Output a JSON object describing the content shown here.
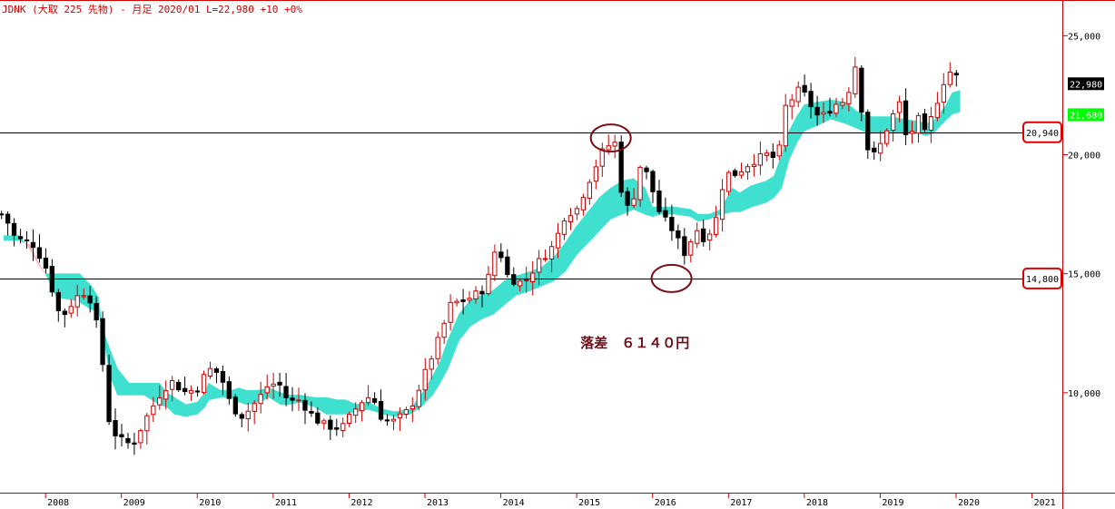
{
  "header": {
    "title": "JDNK (大取 225 先物) - 月足 2020/01 L=22,980 +10  +0%"
  },
  "chart_data": {
    "type": "candlestick",
    "timeframe": "monthly",
    "ylim": [
      5800,
      26500
    ],
    "yticks": [
      10000,
      15000,
      20000,
      25000
    ],
    "ytick_labels": [
      "10,000",
      "15,000",
      "20,000",
      "25,000"
    ],
    "xrange_years": [
      2007.4,
      2021.4
    ],
    "xticks": [
      2008,
      2009,
      2010,
      2011,
      2012,
      2013,
      2014,
      2015,
      2016,
      2017,
      2018,
      2019,
      2020,
      2021
    ],
    "xtick_labels": [
      "2008",
      "2009",
      "2010",
      "2011",
      "2012",
      "2013",
      "2014",
      "2015",
      "2016",
      "2017",
      "2018",
      "2019",
      "2020",
      "2021"
    ],
    "close_anchors": [
      [
        2007.45,
        17500
      ],
      [
        2007.6,
        16500
      ],
      [
        2007.85,
        16200
      ],
      [
        2008.0,
        15300
      ],
      [
        2008.2,
        13100
      ],
      [
        2008.4,
        14000
      ],
      [
        2008.55,
        14300
      ],
      [
        2008.65,
        13300
      ],
      [
        2008.75,
        11300
      ],
      [
        2008.85,
        8500
      ],
      [
        2009.0,
        8000
      ],
      [
        2009.15,
        7800
      ],
      [
        2009.3,
        8800
      ],
      [
        2009.5,
        9900
      ],
      [
        2009.65,
        10500
      ],
      [
        2009.85,
        10000
      ],
      [
        2010.0,
        10200
      ],
      [
        2010.15,
        11000
      ],
      [
        2010.3,
        10800
      ],
      [
        2010.45,
        9400
      ],
      [
        2010.6,
        9000
      ],
      [
        2010.8,
        9700
      ],
      [
        2010.95,
        10400
      ],
      [
        2011.1,
        10300
      ],
      [
        2011.2,
        9600
      ],
      [
        2011.35,
        9700
      ],
      [
        2011.55,
        8900
      ],
      [
        2011.7,
        8600
      ],
      [
        2011.9,
        8500
      ],
      [
        2012.15,
        9600
      ],
      [
        2012.3,
        9900
      ],
      [
        2012.45,
        8800
      ],
      [
        2012.6,
        8800
      ],
      [
        2012.8,
        9300
      ],
      [
        2012.95,
        10400
      ],
      [
        2013.2,
        12400
      ],
      [
        2013.35,
        13800
      ],
      [
        2013.45,
        13800
      ],
      [
        2013.6,
        14000
      ],
      [
        2013.8,
        14400
      ],
      [
        2013.95,
        16300
      ],
      [
        2014.1,
        14800
      ],
      [
        2014.3,
        14600
      ],
      [
        2014.5,
        15500
      ],
      [
        2014.7,
        16200
      ],
      [
        2014.85,
        17500
      ],
      [
        2015.0,
        17700
      ],
      [
        2015.2,
        19200
      ],
      [
        2015.35,
        20200
      ],
      [
        2015.5,
        20600
      ],
      [
        2015.55,
        18900
      ],
      [
        2015.7,
        17500
      ],
      [
        2015.85,
        19700
      ],
      [
        2015.95,
        19000
      ],
      [
        2016.1,
        17500
      ],
      [
        2016.25,
        16900
      ],
      [
        2016.45,
        15700
      ],
      [
        2016.55,
        17000
      ],
      [
        2016.7,
        16400
      ],
      [
        2016.85,
        17400
      ],
      [
        2016.95,
        19200
      ],
      [
        2017.1,
        19200
      ],
      [
        2017.3,
        19700
      ],
      [
        2017.5,
        20000
      ],
      [
        2017.65,
        19800
      ],
      [
        2017.75,
        22000
      ],
      [
        2017.95,
        22800
      ],
      [
        2018.1,
        22000
      ],
      [
        2018.2,
        21500
      ],
      [
        2018.4,
        22100
      ],
      [
        2018.55,
        22300
      ],
      [
        2018.7,
        24100
      ],
      [
        2018.75,
        22000
      ],
      [
        2018.85,
        20000
      ],
      [
        2018.95,
        20000
      ],
      [
        2019.1,
        21200
      ],
      [
        2019.25,
        22200
      ],
      [
        2019.35,
        20600
      ],
      [
        2019.5,
        21500
      ],
      [
        2019.6,
        20800
      ],
      [
        2019.7,
        21800
      ],
      [
        2019.85,
        23200
      ],
      [
        2019.95,
        23600
      ],
      [
        2020.05,
        22980
      ]
    ],
    "ichimoku_cloud": [
      [
        2007.45,
        16600,
        16400
      ],
      [
        2007.65,
        16600,
        16400
      ],
      [
        2007.8,
        16000,
        16200
      ],
      [
        2007.9,
        15400,
        15500
      ],
      [
        2008.0,
        15000,
        15000
      ],
      [
        2008.15,
        15000,
        14000
      ],
      [
        2008.35,
        15000,
        13900
      ],
      [
        2008.45,
        15000,
        13800
      ],
      [
        2008.6,
        14500,
        13500
      ],
      [
        2008.7,
        14000,
        13400
      ],
      [
        2008.75,
        12700,
        12600
      ],
      [
        2008.85,
        11800,
        10700
      ],
      [
        2008.95,
        11000,
        9900
      ],
      [
        2009.1,
        10400,
        9900
      ],
      [
        2009.3,
        10400,
        9900
      ],
      [
        2009.5,
        10400,
        9500
      ],
      [
        2009.6,
        10000,
        9400
      ],
      [
        2009.7,
        9800,
        9100
      ],
      [
        2009.85,
        9500,
        9000
      ],
      [
        2010.0,
        9600,
        9100
      ],
      [
        2010.1,
        10000,
        9400
      ],
      [
        2010.15,
        10400,
        9700
      ],
      [
        2010.3,
        10100,
        9800
      ],
      [
        2010.45,
        10100,
        9800
      ],
      [
        2010.55,
        10200,
        9600
      ],
      [
        2010.65,
        10100,
        9500
      ],
      [
        2010.8,
        10100,
        9600
      ],
      [
        2010.95,
        10200,
        9800
      ],
      [
        2011.1,
        10000,
        9500
      ],
      [
        2011.2,
        9900,
        9500
      ],
      [
        2011.35,
        9900,
        9600
      ],
      [
        2011.55,
        9800,
        9400
      ],
      [
        2011.7,
        9800,
        9100
      ],
      [
        2011.85,
        9700,
        9100
      ],
      [
        2011.95,
        9700,
        9100
      ],
      [
        2012.1,
        9500,
        9200
      ],
      [
        2012.25,
        9600,
        9300
      ],
      [
        2012.45,
        9300,
        9100
      ],
      [
        2012.6,
        9200,
        9000
      ],
      [
        2012.8,
        9300,
        9100
      ],
      [
        2012.95,
        9900,
        9400
      ],
      [
        2013.1,
        10700,
        9900
      ],
      [
        2013.2,
        11300,
        10400
      ],
      [
        2013.3,
        12200,
        11000
      ],
      [
        2013.45,
        13300,
        12200
      ],
      [
        2013.6,
        13900,
        12800
      ],
      [
        2013.75,
        14100,
        13100
      ],
      [
        2013.9,
        14300,
        13300
      ],
      [
        2014.05,
        14700,
        13700
      ],
      [
        2014.2,
        14900,
        14100
      ],
      [
        2014.4,
        15100,
        14300
      ],
      [
        2014.55,
        15300,
        14500
      ],
      [
        2014.7,
        15700,
        14700
      ],
      [
        2014.85,
        16300,
        15100
      ],
      [
        2015.0,
        17000,
        15800
      ],
      [
        2015.15,
        17600,
        16300
      ],
      [
        2015.3,
        18200,
        16800
      ],
      [
        2015.45,
        18600,
        17300
      ],
      [
        2015.6,
        18900,
        17500
      ],
      [
        2015.75,
        19000,
        17700
      ],
      [
        2015.9,
        18600,
        17500
      ],
      [
        2016.0,
        17800,
        17400
      ],
      [
        2016.1,
        17800,
        17500
      ],
      [
        2016.3,
        17800,
        17500
      ],
      [
        2016.5,
        17700,
        17400
      ],
      [
        2016.6,
        17500,
        17200
      ],
      [
        2016.75,
        17500,
        17300
      ],
      [
        2016.9,
        17700,
        17500
      ],
      [
        2017.05,
        18600,
        17600
      ],
      [
        2017.15,
        18400,
        17600
      ],
      [
        2017.3,
        18700,
        17800
      ],
      [
        2017.5,
        18900,
        18000
      ],
      [
        2017.6,
        19100,
        18200
      ],
      [
        2017.7,
        20000,
        18600
      ],
      [
        2017.8,
        21000,
        19800
      ],
      [
        2017.9,
        21600,
        20500
      ],
      [
        2018.0,
        22100,
        21000
      ],
      [
        2018.15,
        22200,
        21200
      ],
      [
        2018.35,
        22300,
        21500
      ],
      [
        2018.55,
        22200,
        21300
      ],
      [
        2018.7,
        21800,
        21100
      ],
      [
        2018.85,
        21600,
        20900
      ],
      [
        2019.0,
        21600,
        20900
      ],
      [
        2019.15,
        21600,
        20900
      ],
      [
        2019.3,
        21500,
        20900
      ],
      [
        2019.5,
        21400,
        20900
      ],
      [
        2019.6,
        21300,
        20800
      ],
      [
        2019.7,
        21400,
        20900
      ],
      [
        2019.85,
        22000,
        21400
      ],
      [
        2019.95,
        22600,
        21700
      ],
      [
        2020.05,
        22700,
        21800
      ]
    ],
    "horizontal_lines": [
      {
        "value": 20940,
        "label": "20,940"
      },
      {
        "value": 14800,
        "label": "14,800"
      }
    ],
    "price_tags": [
      {
        "value": 22980,
        "label": "22,980",
        "bg": "#000000",
        "fg": "#ffffff"
      },
      {
        "value": 21680,
        "label": "21,680",
        "bg": "#00ff00",
        "fg": "#ffffff"
      }
    ],
    "highlight_ellipses": [
      {
        "x_year": 2015.45,
        "value": 20700
      },
      {
        "x_year": 2016.25,
        "value": 14800
      }
    ],
    "annotation": {
      "text": "落差　６１４０円",
      "x_year": 2015.05,
      "value": 11900
    }
  },
  "colors": {
    "bull": "#cc0000",
    "bear": "#000000",
    "cloud_up": "#ffb6c1",
    "cloud_down": "#40e0d0",
    "header": "#cc0000",
    "ellipse": "#7b0f18",
    "tag_box": "#dd0000",
    "annotation": "#6b0f1a"
  }
}
